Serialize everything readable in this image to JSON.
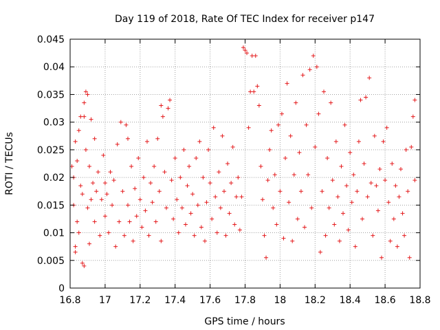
{
  "chart_data": {
    "type": "scatter",
    "title": "Day 119 of 2018, Rate Of TEC Index for receiver p147",
    "xlabel": "GPS time / hours",
    "ylabel": "ROTI / TECUs",
    "xlim": [
      16.8,
      18.8
    ],
    "ylim": [
      0,
      0.045
    ],
    "x_ticks": [
      "16.8",
      "17",
      "17.2",
      "17.4",
      "17.6",
      "17.8",
      "18",
      "18.2",
      "18.4",
      "18.6",
      "18.8"
    ],
    "y_ticks": [
      "0",
      "0.005",
      "0.01",
      "0.015",
      "0.02",
      "0.025",
      "0.03",
      "0.035",
      "0.04",
      "0.045"
    ],
    "grid": true,
    "marker": "+",
    "color": "#e41a1c",
    "series": [
      {
        "name": "ROTI",
        "points": [
          [
            16.81,
            0.022
          ],
          [
            16.82,
            0.02
          ],
          [
            16.82,
            0.015
          ],
          [
            16.83,
            0.0075
          ],
          [
            16.83,
            0.0065
          ],
          [
            16.83,
            0.0265
          ],
          [
            16.84,
            0.023
          ],
          [
            16.84,
            0.012
          ],
          [
            16.85,
            0.0285
          ],
          [
            16.85,
            0.01
          ],
          [
            16.86,
            0.031
          ],
          [
            16.86,
            0.0185
          ],
          [
            16.87,
            0.0045
          ],
          [
            16.87,
            0.017
          ],
          [
            16.88,
            0.031
          ],
          [
            16.88,
            0.004
          ],
          [
            16.88,
            0.0335
          ],
          [
            16.89,
            0.0355
          ],
          [
            16.89,
            0.025
          ],
          [
            16.9,
            0.035
          ],
          [
            16.9,
            0.0145
          ],
          [
            16.91,
            0.022
          ],
          [
            16.91,
            0.008
          ],
          [
            16.92,
            0.0305
          ],
          [
            16.92,
            0.016
          ],
          [
            16.93,
            0.019
          ],
          [
            16.94,
            0.027
          ],
          [
            16.94,
            0.012
          ],
          [
            16.95,
            0.0175
          ],
          [
            16.96,
            0.021
          ],
          [
            16.97,
            0.0095
          ],
          [
            16.98,
            0.016
          ],
          [
            16.99,
            0.024
          ],
          [
            17.0,
            0.019
          ],
          [
            17.0,
            0.013
          ],
          [
            17.01,
            0.017
          ],
          [
            17.02,
            0.01
          ],
          [
            17.03,
            0.021
          ],
          [
            17.04,
            0.015
          ],
          [
            17.05,
            0.0195
          ],
          [
            17.06,
            0.0075
          ],
          [
            17.07,
            0.026
          ],
          [
            17.08,
            0.012
          ],
          [
            17.09,
            0.03
          ],
          [
            17.1,
            0.0175
          ],
          [
            17.11,
            0.0095
          ],
          [
            17.12,
            0.0295
          ],
          [
            17.13,
            0.015
          ],
          [
            17.13,
            0.027
          ],
          [
            17.14,
            0.012
          ],
          [
            17.15,
            0.022
          ],
          [
            17.16,
            0.0085
          ],
          [
            17.17,
            0.018
          ],
          [
            17.18,
            0.013
          ],
          [
            17.19,
            0.0235
          ],
          [
            17.2,
            0.016
          ],
          [
            17.21,
            0.011
          ],
          [
            17.22,
            0.02
          ],
          [
            17.23,
            0.014
          ],
          [
            17.24,
            0.0265
          ],
          [
            17.25,
            0.0095
          ],
          [
            17.26,
            0.019
          ],
          [
            17.27,
            0.0155
          ],
          [
            17.28,
            0.022
          ],
          [
            17.29,
            0.012
          ],
          [
            17.3,
            0.027
          ],
          [
            17.31,
            0.0175
          ],
          [
            17.32,
            0.033
          ],
          [
            17.32,
            0.0085
          ],
          [
            17.33,
            0.031
          ],
          [
            17.34,
            0.021
          ],
          [
            17.35,
            0.0145
          ],
          [
            17.36,
            0.0325
          ],
          [
            17.37,
            0.034
          ],
          [
            17.38,
            0.0195
          ],
          [
            17.39,
            0.0125
          ],
          [
            17.4,
            0.0235
          ],
          [
            17.41,
            0.016
          ],
          [
            17.42,
            0.01
          ],
          [
            17.43,
            0.02
          ],
          [
            17.44,
            0.0145
          ],
          [
            17.45,
            0.025
          ],
          [
            17.46,
            0.0115
          ],
          [
            17.47,
            0.0185
          ],
          [
            17.48,
            0.022
          ],
          [
            17.49,
            0.0135
          ],
          [
            17.5,
            0.017
          ],
          [
            17.51,
            0.0095
          ],
          [
            17.52,
            0.0235
          ],
          [
            17.53,
            0.015
          ],
          [
            17.54,
            0.0265
          ],
          [
            17.55,
            0.011
          ],
          [
            17.56,
            0.02
          ],
          [
            17.57,
            0.0085
          ],
          [
            17.58,
            0.0155
          ],
          [
            17.59,
            0.025
          ],
          [
            17.6,
            0.019
          ],
          [
            17.61,
            0.0125
          ],
          [
            17.62,
            0.029
          ],
          [
            17.63,
            0.0165
          ],
          [
            17.64,
            0.01
          ],
          [
            17.65,
            0.021
          ],
          [
            17.66,
            0.0145
          ],
          [
            17.67,
            0.0275
          ],
          [
            17.68,
            0.0175
          ],
          [
            17.69,
            0.0095
          ],
          [
            17.7,
            0.0225
          ],
          [
            17.71,
            0.0135
          ],
          [
            17.72,
            0.019
          ],
          [
            17.73,
            0.0255
          ],
          [
            17.74,
            0.0115
          ],
          [
            17.75,
            0.0165
          ],
          [
            17.76,
            0.02
          ],
          [
            17.77,
            0.0105
          ],
          [
            17.78,
            0.0165
          ],
          [
            17.79,
            0.0435
          ],
          [
            17.8,
            0.043
          ],
          [
            17.81,
            0.0425
          ],
          [
            17.82,
            0.029
          ],
          [
            17.83,
            0.0355
          ],
          [
            17.84,
            0.042
          ],
          [
            17.85,
            0.0355
          ],
          [
            17.86,
            0.042
          ],
          [
            17.87,
            0.0365
          ],
          [
            17.88,
            0.033
          ],
          [
            17.89,
            0.022
          ],
          [
            17.9,
            0.016
          ],
          [
            17.91,
            0.0095
          ],
          [
            17.92,
            0.0055
          ],
          [
            17.93,
            0.0195
          ],
          [
            17.94,
            0.025
          ],
          [
            17.95,
            0.0285
          ],
          [
            17.96,
            0.0145
          ],
          [
            17.97,
            0.0205
          ],
          [
            17.98,
            0.0115
          ],
          [
            17.99,
            0.0295
          ],
          [
            18.0,
            0.0175
          ],
          [
            18.01,
            0.0315
          ],
          [
            18.02,
            0.009
          ],
          [
            18.03,
            0.0235
          ],
          [
            18.04,
            0.037
          ],
          [
            18.05,
            0.0155
          ],
          [
            18.06,
            0.0275
          ],
          [
            18.07,
            0.0085
          ],
          [
            18.08,
            0.0205
          ],
          [
            18.09,
            0.0335
          ],
          [
            18.1,
            0.0125
          ],
          [
            18.11,
            0.0245
          ],
          [
            18.12,
            0.0175
          ],
          [
            18.13,
            0.0385
          ],
          [
            18.14,
            0.011
          ],
          [
            18.15,
            0.0295
          ],
          [
            18.16,
            0.0205
          ],
          [
            18.17,
            0.0395
          ],
          [
            18.18,
            0.0145
          ],
          [
            18.19,
            0.042
          ],
          [
            18.2,
            0.0255
          ],
          [
            18.21,
            0.04
          ],
          [
            18.22,
            0.0315
          ],
          [
            18.23,
            0.0065
          ],
          [
            18.24,
            0.0175
          ],
          [
            18.25,
            0.0355
          ],
          [
            18.26,
            0.0095
          ],
          [
            18.27,
            0.0235
          ],
          [
            18.28,
            0.0145
          ],
          [
            18.29,
            0.0335
          ],
          [
            18.3,
            0.0195
          ],
          [
            18.31,
            0.0115
          ],
          [
            18.32,
            0.0265
          ],
          [
            18.33,
            0.0165
          ],
          [
            18.34,
            0.0085
          ],
          [
            18.35,
            0.022
          ],
          [
            18.36,
            0.0135
          ],
          [
            18.37,
            0.0295
          ],
          [
            18.38,
            0.0185
          ],
          [
            18.39,
            0.0105
          ],
          [
            18.4,
            0.0245
          ],
          [
            18.41,
            0.0155
          ],
          [
            18.42,
            0.0205
          ],
          [
            18.43,
            0.0075
          ],
          [
            18.44,
            0.0175
          ],
          [
            18.45,
            0.0265
          ],
          [
            18.46,
            0.034
          ],
          [
            18.47,
            0.0125
          ],
          [
            18.48,
            0.0225
          ],
          [
            18.49,
            0.0345
          ],
          [
            18.5,
            0.0165
          ],
          [
            18.51,
            0.038
          ],
          [
            18.52,
            0.019
          ],
          [
            18.53,
            0.0095
          ],
          [
            18.54,
            0.0275
          ],
          [
            18.55,
            0.0185
          ],
          [
            18.56,
            0.014
          ],
          [
            18.57,
            0.0215
          ],
          [
            18.58,
            0.0055
          ],
          [
            18.59,
            0.0265
          ],
          [
            18.6,
            0.0195
          ],
          [
            18.61,
            0.029
          ],
          [
            18.62,
            0.0155
          ],
          [
            18.63,
            0.0085
          ],
          [
            18.64,
            0.0225
          ],
          [
            18.65,
            0.0125
          ],
          [
            18.66,
            0.0185
          ],
          [
            18.67,
            0.0075
          ],
          [
            18.68,
            0.0165
          ],
          [
            18.69,
            0.0215
          ],
          [
            18.7,
            0.0135
          ],
          [
            18.71,
            0.0095
          ],
          [
            18.72,
            0.025
          ],
          [
            18.73,
            0.0175
          ],
          [
            18.74,
            0.0055
          ],
          [
            18.75,
            0.0255
          ],
          [
            18.76,
            0.031
          ],
          [
            18.77,
            0.034
          ],
          [
            18.77,
            0.0195
          ]
        ]
      }
    ]
  }
}
